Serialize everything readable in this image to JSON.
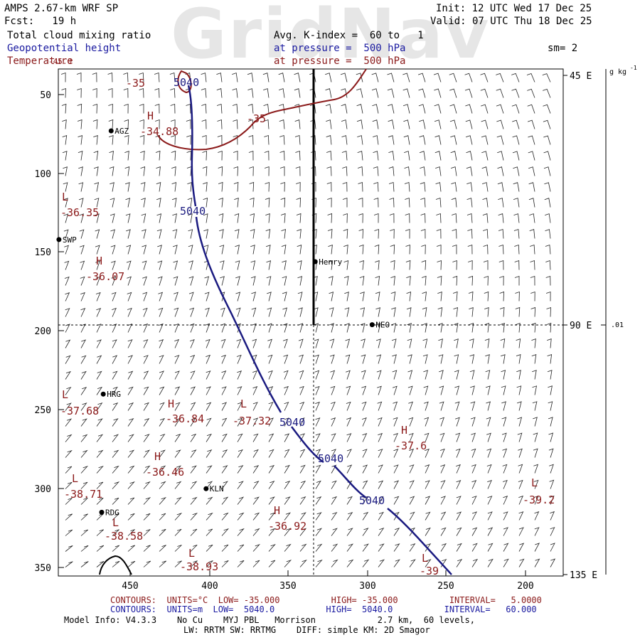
{
  "header": {
    "watermark": "GridNav",
    "model_title": "AMPS 2.67-km WRF SP",
    "forecast_label": "Fcst:   19 h",
    "init_time": "Init: 12 UTC Wed 17 Dec 25",
    "valid_time": "Valid: 07 UTC Thu 18 Dec 25",
    "field_1": "Total cloud mixing ratio",
    "field_2": "Geopotential height",
    "field_3": "Temperature",
    "avg_label": "Avg. K-index =  60 to   1",
    "pressure_line_1": "at pressure =  500 hPa",
    "pressure_line_2": "at pressure =  500 hPa",
    "smoothing": "sm= 2"
  },
  "axes": {
    "y_ticks": [
      "50",
      "100",
      "150",
      "200",
      "250",
      "300",
      "350"
    ],
    "x_ticks": [
      "450",
      "400",
      "350",
      "300",
      "250",
      "200"
    ],
    "right_ticks": [
      "45 E",
      "90 E",
      "135 E"
    ],
    "colorbar_unit": "g kg",
    "colorbar_unit_exp": "-1",
    "colorbar_value": ".01"
  },
  "stations": [
    {
      "name": "AGZ",
      "x": 462,
      "y": 73
    },
    {
      "name": "SWP",
      "x": 495,
      "y": 142
    },
    {
      "name": "Henry",
      "x": 333,
      "y": 156
    },
    {
      "name": "NEO",
      "x": 297,
      "y": 196
    },
    {
      "name": "HRG",
      "x": 467,
      "y": 240
    },
    {
      "name": "KLN",
      "x": 402,
      "y": 300
    },
    {
      "name": "RDG",
      "x": 468,
      "y": 315
    }
  ],
  "height_labels": [
    "5040",
    "5040",
    "5040",
    "5040",
    "5040"
  ],
  "temperature_labels": [
    "-35",
    "-35",
    "H",
    "-34.88",
    "L",
    "-36.35",
    "H",
    "-36.07",
    "L",
    "-37.68",
    "H",
    "-36.84",
    "L",
    "-37.32",
    "H",
    "-37.6",
    "H",
    "-36.46",
    "L",
    "-38.71",
    "L",
    "-39.2",
    "H",
    "-36.92",
    "L",
    "-38.58",
    "L",
    "-38.93",
    "L",
    "-39",
    "-45.0"
  ],
  "footer": {
    "temp_contours": "CONTOURS:  UNITS=°C  LOW= -35.000          HIGH= -35.000          INTERVAL=   5.0000",
    "height_contours": "CONTOURS:  UNITS=m  LOW=  5040.0          HIGH=  5040.0          INTERVAL=   60.000",
    "model_info": "Model Info: V4.3.3    No Cu    MYJ PBL   Morrison            2.7 km,  60 levels,",
    "physics": "LW: RRTM SW: RRTMG    DIFF: simple KM: 2D Smagor"
  },
  "colors": {
    "height_contour": "#1a1a80",
    "temperature_contour": "#8b1a1a",
    "text_blue": "#1a1aa0",
    "text_red": "#8b1a1a"
  }
}
